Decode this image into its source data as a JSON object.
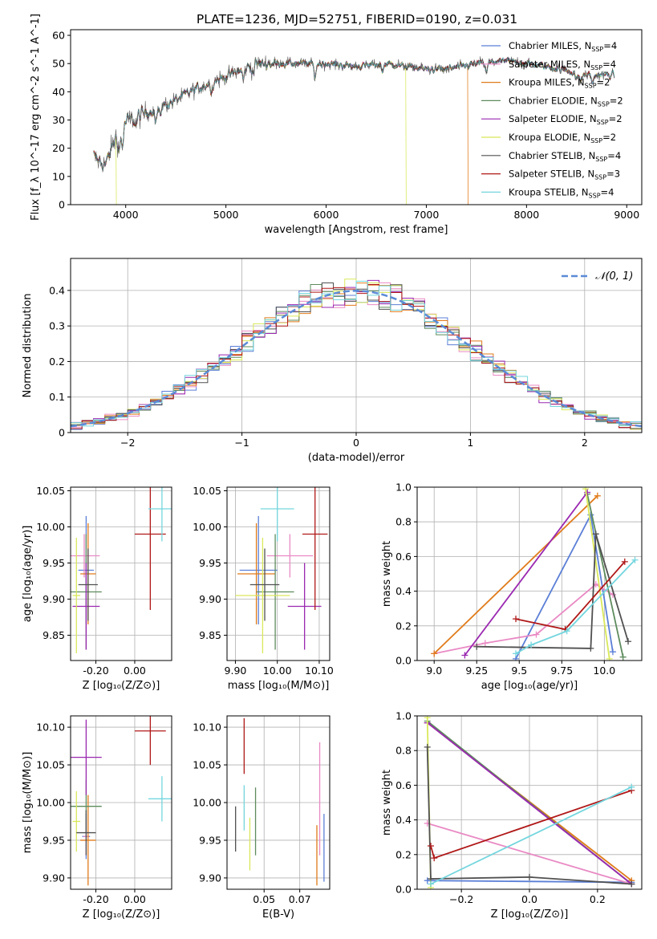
{
  "figure": {
    "title": "PLATE=1236, MJD=52751, FIBERID=0190, z=0.031"
  },
  "series_styles": [
    {
      "name": "Chabrier MILES",
      "nssp": "4",
      "color": "#5b7fd6"
    },
    {
      "name": "Salpeter MILES",
      "nssp": "4",
      "color": "#e98ac4"
    },
    {
      "name": "Kroupa MILES",
      "nssp": "2",
      "color": "#e07b1a"
    },
    {
      "name": "Chabrier ELODIE",
      "nssp": "2",
      "color": "#5e8c5e"
    },
    {
      "name": "Salpeter ELODIE",
      "nssp": "2",
      "color": "#9a28b0"
    },
    {
      "name": "Kroupa ELODIE",
      "nssp": "2",
      "color": "#d9e85a"
    },
    {
      "name": "Chabrier STELIB",
      "nssp": "4",
      "color": "#505050"
    },
    {
      "name": "Salpeter STELIB",
      "nssp": "3",
      "color": "#b01818"
    },
    {
      "name": "Kroupa STELIB",
      "nssp": "4",
      "color": "#74d6de"
    }
  ],
  "chart_data": [
    {
      "id": "spectrum",
      "type": "line",
      "title": "PLATE=1236, MJD=52751, FIBERID=0190, z=0.031",
      "xlabel": "wavelength [Angstrom, rest frame]",
      "ylabel": "Flux [f_λ 10^-17 erg cm^-2 s^-1 A^-1]",
      "xlim": [
        3450,
        9150
      ],
      "ylim": [
        0,
        62
      ],
      "xticks": [
        4000,
        5000,
        6000,
        7000,
        8000,
        9000
      ],
      "yticks": [
        0,
        10,
        20,
        30,
        40,
        50,
        60
      ],
      "legend_position": "top-right",
      "continuum_knots": [
        [
          3680,
          17
        ],
        [
          3800,
          14
        ],
        [
          3900,
          24
        ],
        [
          3980,
          29
        ],
        [
          4100,
          31
        ],
        [
          4300,
          34
        ],
        [
          4500,
          37
        ],
        [
          4700,
          41
        ],
        [
          4900,
          44
        ],
        [
          5100,
          47
        ],
        [
          5300,
          50
        ],
        [
          5600,
          50
        ],
        [
          6000,
          50
        ],
        [
          6300,
          49
        ],
        [
          6600,
          50
        ],
        [
          7000,
          48
        ],
        [
          7200,
          48
        ],
        [
          7500,
          50
        ],
        [
          7800,
          51
        ],
        [
          8200,
          49
        ],
        [
          8600,
          46
        ],
        [
          8880,
          46
        ]
      ],
      "absorption_lines": [
        [
          3934,
          8
        ],
        [
          3969,
          8
        ],
        [
          4102,
          3
        ],
        [
          4300,
          5
        ],
        [
          4340,
          3
        ],
        [
          4861,
          3
        ],
        [
          5175,
          4
        ],
        [
          5270,
          3
        ],
        [
          5890,
          5
        ],
        [
          6563,
          3
        ],
        [
          7600,
          4
        ],
        [
          8500,
          3
        ],
        [
          8542,
          3
        ],
        [
          8662,
          3
        ]
      ],
      "model_drops": [
        {
          "series": "Kroupa ELODIE",
          "x": 3910
        },
        {
          "series": "Kroupa ELODIE",
          "x": 6800
        },
        {
          "series": "Kroupa MILES",
          "x": 7420
        }
      ]
    },
    {
      "id": "residual-histogram",
      "type": "histogram",
      "xlabel": "(data-model)/error",
      "ylabel": "Normed distribution",
      "xlim": [
        -2.5,
        2.5
      ],
      "ylim": [
        0,
        0.49
      ],
      "xticks": [
        -2,
        -1,
        0,
        1,
        2
      ],
      "yticks": [
        0.0,
        0.1,
        0.2,
        0.3,
        0.4
      ],
      "bin_width": 0.1,
      "reference_curve": {
        "label": "𝒩(0, 1)",
        "mean": 0,
        "sigma": 1,
        "color": "#5b8bd6",
        "style": "dashed"
      },
      "legend_position": "top-right"
    },
    {
      "id": "age-vs-metallicity",
      "type": "errorbar",
      "xlabel": "Z [log10(Z/Z⊙)]",
      "ylabel": "age [log10(age/yr)]",
      "xlim": [
        -0.33,
        0.19
      ],
      "ylim": [
        9.815,
        10.055
      ],
      "xticks": [
        -0.2,
        0.0
      ],
      "yticks": [
        9.85,
        9.9,
        9.95,
        10.0,
        10.05
      ],
      "points": [
        {
          "series": "Chabrier MILES",
          "x": -0.25,
          "y": 9.94,
          "xerr": 0.04,
          "yerr": 0.075
        },
        {
          "series": "Salpeter MILES",
          "x": -0.26,
          "y": 9.96,
          "xerr": 0.08,
          "yerr": 0.03
        },
        {
          "series": "Kroupa MILES",
          "x": -0.24,
          "y": 9.935,
          "xerr": 0.04,
          "yerr": 0.07
        },
        {
          "series": "Chabrier ELODIE",
          "x": -0.25,
          "y": 9.91,
          "xerr": 0.08,
          "yerr": 0.08
        },
        {
          "series": "Salpeter ELODIE",
          "x": -0.25,
          "y": 9.89,
          "xerr": 0.07,
          "yerr": 0.06
        },
        {
          "series": "Kroupa ELODIE",
          "x": -0.3,
          "y": 9.905,
          "xerr": 0.02,
          "yerr": 0.08
        },
        {
          "series": "Chabrier STELIB",
          "x": -0.24,
          "y": 9.92,
          "xerr": 0.05,
          "yerr": 0.05
        },
        {
          "series": "Salpeter STELIB",
          "x": 0.08,
          "y": 9.99,
          "xerr": 0.08,
          "yerr": 0.105
        },
        {
          "series": "Kroupa STELIB",
          "x": 0.14,
          "y": 10.025,
          "xerr": 0.07,
          "yerr": 0.045
        }
      ]
    },
    {
      "id": "age-vs-mass",
      "type": "errorbar",
      "xlabel": "mass [log10(M/M⊙)]",
      "ylabel": "",
      "xlim": [
        9.88,
        10.125
      ],
      "ylim": [
        9.815,
        10.055
      ],
      "xticks": [
        9.9,
        10.0,
        10.1
      ],
      "yticks": [
        9.85,
        9.9,
        9.95,
        10.0,
        10.05
      ],
      "points": [
        {
          "series": "Chabrier MILES",
          "x": 9.955,
          "y": 9.94,
          "xerr": 0.045,
          "yerr": 0.075
        },
        {
          "series": "Salpeter MILES",
          "x": 10.03,
          "y": 9.96,
          "xerr": 0.055,
          "yerr": 0.03
        },
        {
          "series": "Kroupa MILES",
          "x": 9.95,
          "y": 9.935,
          "xerr": 0.045,
          "yerr": 0.07
        },
        {
          "series": "Chabrier ELODIE",
          "x": 9.995,
          "y": 9.91,
          "xerr": 0.045,
          "yerr": 0.08
        },
        {
          "series": "Salpeter ELODIE",
          "x": 10.065,
          "y": 9.89,
          "xerr": 0.04,
          "yerr": 0.06
        },
        {
          "series": "Kroupa ELODIE",
          "x": 9.965,
          "y": 9.905,
          "xerr": 0.065,
          "yerr": 0.08
        },
        {
          "series": "Chabrier STELIB",
          "x": 9.97,
          "y": 9.92,
          "xerr": 0.035,
          "yerr": 0.05
        },
        {
          "series": "Salpeter STELIB",
          "x": 10.09,
          "y": 9.99,
          "xerr": 0.03,
          "yerr": 0.105
        },
        {
          "series": "Kroupa STELIB",
          "x": 10.0,
          "y": 10.025,
          "xerr": 0.04,
          "yerr": 0.045
        }
      ]
    },
    {
      "id": "mass-weight-vs-age",
      "type": "line",
      "xlabel": "age [log10(age/yr)]",
      "ylabel": "mass weight",
      "xlim": [
        8.9,
        10.22
      ],
      "ylim": [
        0,
        1.0
      ],
      "xticks": [
        9.0,
        9.25,
        9.5,
        9.75,
        10.0
      ],
      "yticks": [
        0.0,
        0.2,
        0.4,
        0.6,
        0.8,
        1.0
      ],
      "series": [
        {
          "name": "Chabrier MILES",
          "points": [
            [
              9.48,
              0.01
            ],
            [
              9.92,
              0.84
            ],
            [
              10.05,
              0.05
            ]
          ]
        },
        {
          "name": "Salpeter MILES",
          "points": [
            [
              9.0,
              0.04
            ],
            [
              9.3,
              0.1
            ],
            [
              9.6,
              0.15
            ],
            [
              9.95,
              0.44
            ],
            [
              10.05,
              0.38
            ]
          ]
        },
        {
          "name": "Kroupa MILES",
          "points": [
            [
              9.0,
              0.04
            ],
            [
              9.96,
              0.95
            ]
          ]
        },
        {
          "name": "Chabrier ELODIE",
          "points": [
            [
              9.9,
              0.96
            ],
            [
              10.11,
              0.02
            ]
          ]
        },
        {
          "name": "Salpeter ELODIE",
          "points": [
            [
              9.18,
              0.03
            ],
            [
              9.9,
              0.97
            ]
          ]
        },
        {
          "name": "Kroupa ELODIE",
          "points": [
            [
              9.89,
              0.99
            ],
            [
              10.03,
              0.01
            ]
          ]
        },
        {
          "name": "Chabrier STELIB",
          "points": [
            [
              9.25,
              0.08
            ],
            [
              9.92,
              0.07
            ],
            [
              9.95,
              0.73
            ],
            [
              10.14,
              0.11
            ]
          ]
        },
        {
          "name": "Salpeter STELIB",
          "points": [
            [
              9.48,
              0.24
            ],
            [
              9.77,
              0.18
            ],
            [
              10.12,
              0.57
            ]
          ]
        },
        {
          "name": "Kroupa STELIB",
          "points": [
            [
              9.48,
              0.04
            ],
            [
              9.57,
              0.09
            ],
            [
              9.78,
              0.17
            ],
            [
              10.18,
              0.58
            ]
          ]
        }
      ]
    },
    {
      "id": "mass-vs-metallicity",
      "type": "errorbar",
      "xlabel": "Z [log10(Z/Z⊙)]",
      "ylabel": "mass [log10(M/M⊙)]",
      "xlim": [
        -0.33,
        0.19
      ],
      "ylim": [
        9.885,
        10.115
      ],
      "xticks": [
        -0.2,
        0.0
      ],
      "yticks": [
        9.9,
        9.95,
        10.0,
        10.05,
        10.1
      ],
      "points": [
        {
          "series": "Chabrier MILES",
          "x": -0.25,
          "y": 9.955,
          "xerr": 0.02,
          "yerr": 0.03
        },
        {
          "series": "Salpeter MILES",
          "x": -0.25,
          "y": 9.955,
          "xerr": 0.015,
          "yerr": 0.025
        },
        {
          "series": "Kroupa MILES",
          "x": -0.24,
          "y": 9.95,
          "xerr": 0.04,
          "yerr": 0.06
        },
        {
          "series": "Chabrier ELODIE",
          "x": -0.25,
          "y": 9.995,
          "xerr": 0.08,
          "yerr": 0.035
        },
        {
          "series": "Salpeter ELODIE",
          "x": -0.25,
          "y": 10.06,
          "xerr": 0.08,
          "yerr": 0.05
        },
        {
          "series": "Kroupa ELODIE",
          "x": -0.3,
          "y": 9.975,
          "xerr": 0.02,
          "yerr": 0.04
        },
        {
          "series": "Chabrier STELIB",
          "x": -0.25,
          "y": 9.96,
          "xerr": 0.05,
          "yerr": 0.03
        },
        {
          "series": "Salpeter STELIB",
          "x": 0.08,
          "y": 10.095,
          "xerr": 0.08,
          "yerr": 0.045
        },
        {
          "series": "Kroupa STELIB",
          "x": 0.14,
          "y": 10.005,
          "xerr": 0.07,
          "yerr": 0.03
        }
      ]
    },
    {
      "id": "mass-vs-extinction",
      "type": "errorbar",
      "xlabel": "E(B-V)",
      "ylabel": "",
      "xlim": [
        0.024,
        0.096
      ],
      "ylim": [
        9.885,
        10.115
      ],
      "xticks": [
        0.05,
        0.075
      ],
      "yticks": [
        9.9,
        9.95,
        10.0,
        10.05,
        10.1
      ],
      "points": [
        {
          "series": "Chabrier STELIB",
          "x": 0.03,
          "y": 9.965,
          "xerr": 0,
          "yerr": 0.03
        },
        {
          "series": "Salpeter STELIB",
          "x": 0.036,
          "y": 10.075,
          "xerr": 0,
          "yerr": 0.037
        },
        {
          "series": "Kroupa STELIB",
          "x": 0.036,
          "y": 9.993,
          "xerr": 0,
          "yerr": 0.03
        },
        {
          "series": "Kroupa ELODIE",
          "x": 0.04,
          "y": 9.945,
          "xerr": 0,
          "yerr": 0.035
        },
        {
          "series": "Chabrier ELODIE",
          "x": 0.044,
          "y": 9.975,
          "xerr": 0,
          "yerr": 0.045
        },
        {
          "series": "Kroupa MILES",
          "x": 0.087,
          "y": 9.93,
          "xerr": 0,
          "yerr": 0.04
        },
        {
          "series": "Salpeter MILES",
          "x": 0.089,
          "y": 10.005,
          "xerr": 0,
          "yerr": 0.075
        },
        {
          "series": "Chabrier MILES",
          "x": 0.092,
          "y": 9.94,
          "xerr": 0,
          "yerr": 0.045
        }
      ]
    },
    {
      "id": "mass-weight-vs-metallicity",
      "type": "line",
      "xlabel": "Z [log10(Z/Z⊙)]",
      "ylabel": "mass weight",
      "xlim": [
        -0.33,
        0.33
      ],
      "ylim": [
        0,
        1.0
      ],
      "xticks": [
        -0.2,
        0.0,
        0.2
      ],
      "yticks": [
        0.0,
        0.2,
        0.4,
        0.6,
        0.8,
        1.0
      ],
      "series": [
        {
          "name": "Chabrier MILES",
          "points": [
            [
              -0.3,
              0.05
            ],
            [
              0.3,
              0.04
            ]
          ]
        },
        {
          "name": "Salpeter MILES",
          "points": [
            [
              -0.3,
              0.38
            ],
            [
              0.3,
              0.03
            ]
          ]
        },
        {
          "name": "Kroupa MILES",
          "points": [
            [
              -0.3,
              0.96
            ],
            [
              0.3,
              0.05
            ]
          ]
        },
        {
          "name": "Chabrier ELODIE",
          "points": [
            [
              -0.3,
              0.97
            ],
            [
              0.3,
              0.03
            ]
          ]
        },
        {
          "name": "Salpeter ELODIE",
          "points": [
            [
              -0.3,
              0.96
            ],
            [
              0.3,
              0.03
            ]
          ]
        },
        {
          "name": "Kroupa ELODIE",
          "points": [
            [
              -0.3,
              0.99
            ],
            [
              -0.29,
              0.01
            ]
          ]
        },
        {
          "name": "Chabrier STELIB",
          "points": [
            [
              -0.3,
              0.82
            ],
            [
              -0.29,
              0.06
            ],
            [
              0.0,
              0.07
            ],
            [
              0.3,
              0.03
            ]
          ]
        },
        {
          "name": "Salpeter STELIB",
          "points": [
            [
              -0.29,
              0.25
            ],
            [
              -0.28,
              0.18
            ],
            [
              0.3,
              0.57
            ]
          ]
        },
        {
          "name": "Kroupa STELIB",
          "points": [
            [
              -0.29,
              0.03
            ],
            [
              0.3,
              0.59
            ]
          ]
        }
      ]
    }
  ]
}
